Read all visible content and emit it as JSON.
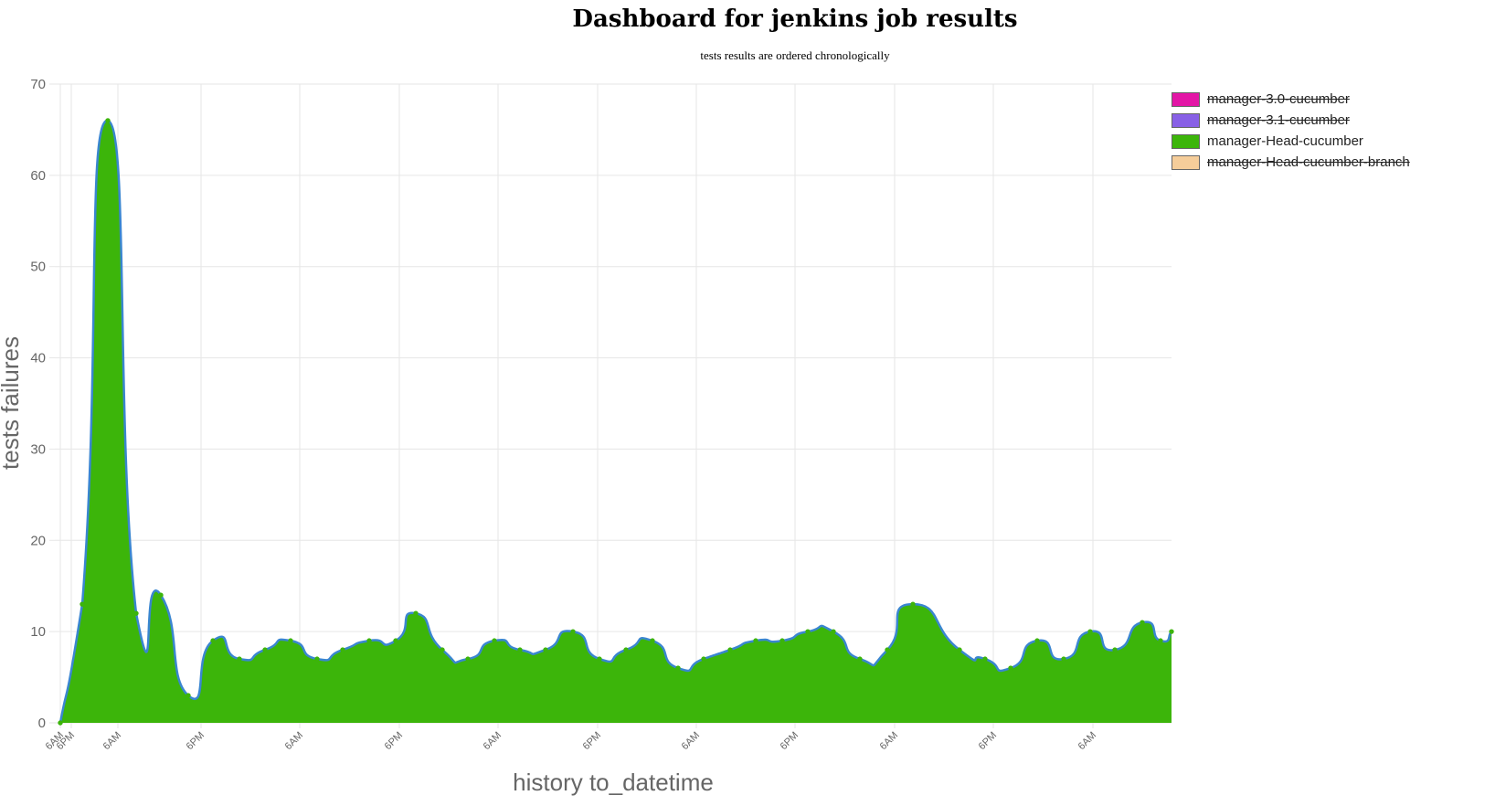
{
  "title": "Dashboard for jenkins job results",
  "subtitle": "tests results are ordered chronologically",
  "colors": {
    "grid": "#e6e6e6",
    "axis_text": "#666666",
    "line": "#3a86d0",
    "fill": "#3cb50a",
    "point": "#3cb50a"
  },
  "chart_data": {
    "type": "area",
    "title": "",
    "xlabel": "history to_datetime",
    "ylabel": "tests failures",
    "ylim": [
      0,
      70
    ],
    "yticks": [
      0,
      10,
      20,
      30,
      40,
      50,
      60,
      70
    ],
    "grid": true,
    "legend_position": "top-right",
    "x_tick_labels": [
      "6AM",
      "6PM",
      "6AM",
      "6PM",
      "6AM",
      "6PM",
      "6AM",
      "6PM",
      "6AM",
      "6PM",
      "6AM",
      "6PM",
      "6AM"
    ],
    "series": [
      {
        "name": "manager-3.0-cucumber",
        "color": "#e316a6",
        "hidden": true,
        "values": []
      },
      {
        "name": "manager-3.1-cucumber",
        "color": "#8860e6",
        "hidden": true,
        "values": []
      },
      {
        "name": "manager-Head-cucumber",
        "color": "#3cb50a",
        "hidden": false,
        "values": [
          0,
          13,
          66,
          12,
          14,
          3,
          9,
          7,
          8,
          9,
          7,
          8,
          9,
          9,
          12,
          8,
          7,
          9,
          8,
          8,
          10,
          7,
          8,
          9,
          6,
          7,
          8,
          9,
          9,
          10,
          10,
          7,
          8,
          13,
          8,
          7,
          6,
          9,
          7,
          10,
          8,
          11,
          9,
          10
        ]
      },
      {
        "name": "manager-Head-cucumber-branch",
        "color": "#f5cd9a",
        "hidden": true,
        "values": []
      }
    ]
  }
}
